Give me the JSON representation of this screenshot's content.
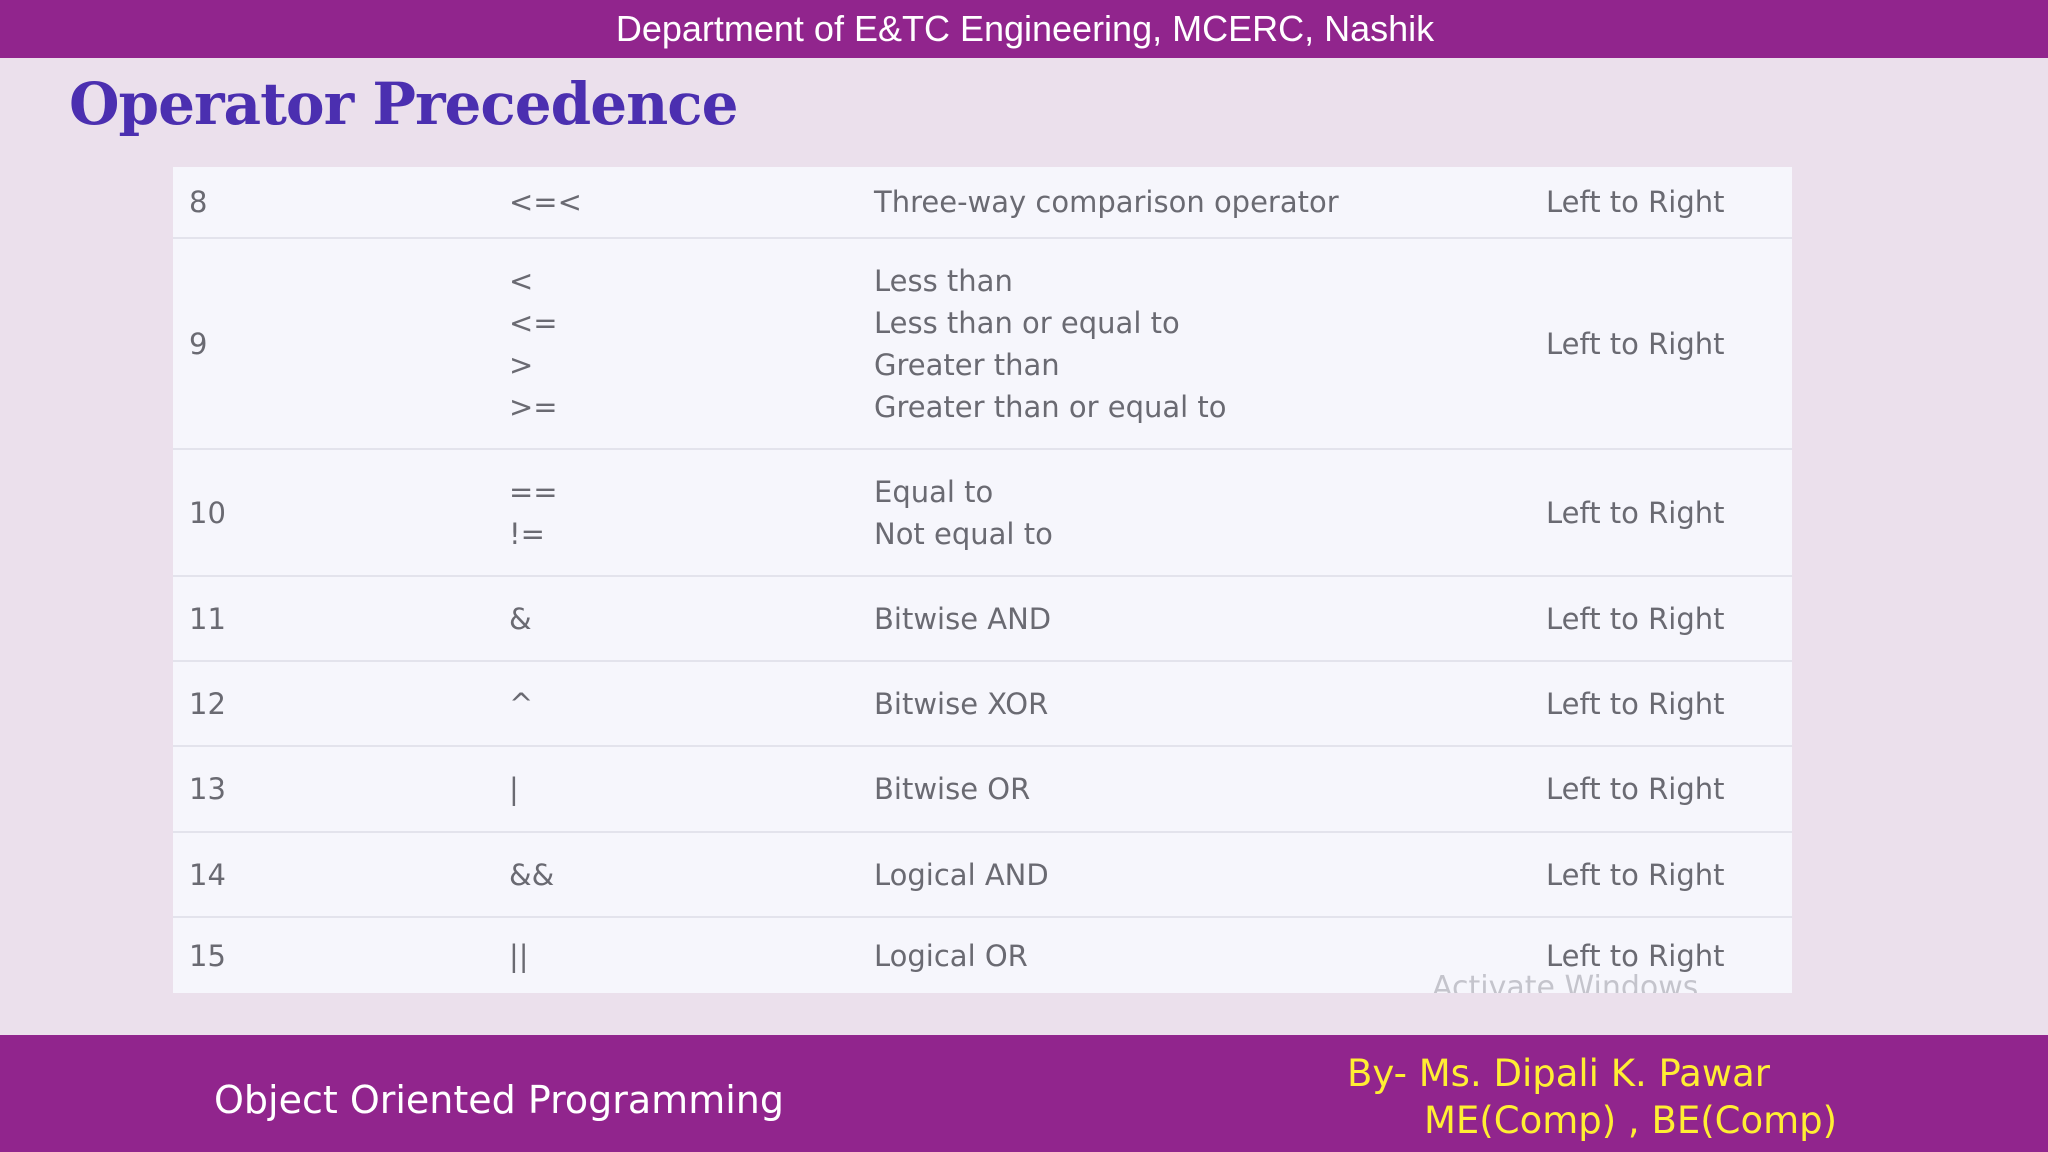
{
  "header": {
    "department": "Department of E&TC Engineering, MCERC, Nashik"
  },
  "slide": {
    "title": "Operator Precedence"
  },
  "table": {
    "rows": [
      {
        "precedence": "8",
        "operators": [
          "<=<"
        ],
        "descriptions": [
          "Three-way comparison operator"
        ],
        "associativity": "Left to Right"
      },
      {
        "precedence": "9",
        "operators": [
          "<",
          "<=",
          ">",
          ">="
        ],
        "descriptions": [
          "Less than",
          "Less than or equal to",
          "Greater than",
          "Greater than or equal to"
        ],
        "associativity": "Left to Right"
      },
      {
        "precedence": "10",
        "operators": [
          "==",
          "!="
        ],
        "descriptions": [
          "Equal to",
          "Not equal to"
        ],
        "associativity": "Left to Right"
      },
      {
        "precedence": "11",
        "operators": [
          "&"
        ],
        "descriptions": [
          "Bitwise AND"
        ],
        "associativity": "Left to Right"
      },
      {
        "precedence": "12",
        "operators": [
          "^"
        ],
        "descriptions": [
          "Bitwise XOR"
        ],
        "associativity": "Left to Right"
      },
      {
        "precedence": "13",
        "operators": [
          "|"
        ],
        "descriptions": [
          "Bitwise OR"
        ],
        "associativity": "Left to Right"
      },
      {
        "precedence": "14",
        "operators": [
          "&&"
        ],
        "descriptions": [
          "Logical AND"
        ],
        "associativity": "Left to Right"
      },
      {
        "precedence": "15",
        "operators": [
          "||"
        ],
        "descriptions": [
          "Logical OR"
        ],
        "associativity": "Left to Right"
      }
    ]
  },
  "watermark": "Activate Windows",
  "footer": {
    "course": "Object Oriented Programming",
    "author": "By- Ms.  Dipali K.  Pawar",
    "degrees": "ME(Comp) , BE(Comp)"
  },
  "colors": {
    "bar": "#91258d",
    "title": "#4b2fb0",
    "author_text": "#ffee33",
    "slide_background": "#ebe0ec",
    "table_background": "#f6f6fc"
  }
}
